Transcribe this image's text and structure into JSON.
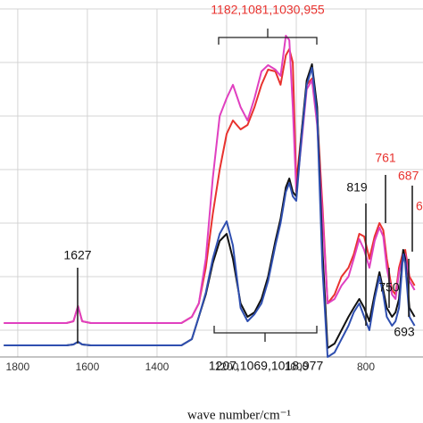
{
  "chart_data": {
    "type": "line",
    "x_label": "wave number/cm⁻¹",
    "xlim": [
      1851,
      636
    ],
    "xticks": [
      1800,
      1600,
      1400,
      1200,
      1000,
      800
    ],
    "ylim": [
      0,
      390
    ],
    "yticks": [
      30,
      90,
      150,
      210,
      270,
      330,
      390
    ],
    "grid": true,
    "x": [
      1840,
      1700,
      1660,
      1640,
      1627,
      1615,
      1590,
      1500,
      1400,
      1330,
      1300,
      1280,
      1260,
      1240,
      1220,
      1200,
      1182,
      1160,
      1140,
      1120,
      1100,
      1081,
      1060,
      1045,
      1030,
      1020,
      1010,
      1000,
      985,
      970,
      955,
      940,
      925,
      910,
      890,
      870,
      850,
      835,
      819,
      805,
      790,
      775,
      761,
      750,
      740,
      725,
      715,
      705,
      693,
      687,
      675,
      660
    ],
    "series": [
      {
        "name": "red",
        "color": "#e8322e",
        "values": [
          38,
          38,
          38,
          40,
          57,
          40,
          38,
          38,
          38,
          38,
          45,
          60,
          100,
          160,
          210,
          250,
          265,
          255,
          260,
          280,
          305,
          322,
          320,
          305,
          338,
          345,
          330,
          195,
          250,
          305,
          312,
          270,
          170,
          60,
          70,
          90,
          100,
          115,
          138,
          135,
          110,
          135,
          150,
          142,
          110,
          75,
          70,
          100,
          118,
          120,
          90,
          80
        ]
      },
      {
        "name": "magenta",
        "color": "#e040c0",
        "values": [
          38,
          38,
          38,
          40,
          57,
          40,
          38,
          38,
          38,
          38,
          45,
          60,
          110,
          200,
          270,
          290,
          305,
          280,
          265,
          290,
          320,
          327,
          322,
          315,
          360,
          355,
          280,
          185,
          240,
          300,
          310,
          260,
          160,
          60,
          65,
          80,
          90,
          110,
          132,
          120,
          100,
          130,
          145,
          135,
          100,
          70,
          65,
          95,
          112,
          115,
          85,
          75
        ]
      },
      {
        "name": "black",
        "color": "#111111",
        "values": [
          13,
          13,
          13,
          14,
          17,
          14,
          13,
          13,
          13,
          13,
          20,
          45,
          70,
          105,
          130,
          138,
          110,
          60,
          45,
          50,
          65,
          90,
          130,
          155,
          190,
          200,
          185,
          180,
          250,
          310,
          328,
          280,
          120,
          10,
          15,
          30,
          45,
          55,
          65,
          55,
          40,
          70,
          95,
          75,
          55,
          45,
          50,
          65,
          120,
          110,
          55,
          45
        ]
      },
      {
        "name": "blue",
        "color": "#2f4fb0",
        "values": [
          13,
          13,
          13,
          14,
          17,
          14,
          13,
          13,
          13,
          13,
          20,
          45,
          72,
          110,
          138,
          152,
          125,
          55,
          40,
          48,
          60,
          85,
          125,
          150,
          185,
          195,
          180,
          175,
          245,
          305,
          324,
          270,
          100,
          0,
          5,
          20,
          35,
          50,
          60,
          45,
          30,
          65,
          90,
          70,
          45,
          35,
          40,
          55,
          115,
          105,
          45,
          35
        ]
      }
    ],
    "annotations": [
      "1182,1081,1030,955",
      "1207,1069,1018,977",
      "1627",
      "819",
      "761",
      "687",
      "750",
      "693",
      "6"
    ]
  }
}
